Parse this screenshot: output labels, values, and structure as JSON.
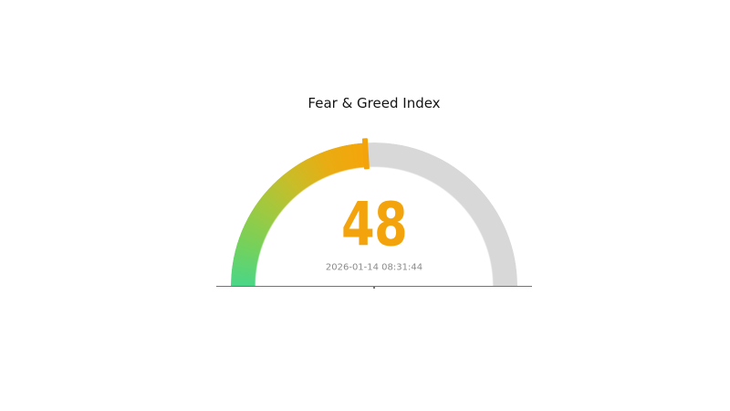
{
  "page": {
    "background_color": "#ffffff"
  },
  "chart_data": {
    "type": "gauge",
    "title": "Fear & Greed Index",
    "value": 48,
    "value_display": "48",
    "range": [
      0,
      100
    ],
    "timestamp": "2026-01-14 08:31:44",
    "gauge": {
      "shape": "semicircle",
      "start_angle_deg": 180,
      "end_angle_deg": 0,
      "fill_fraction": 0.48,
      "fill_gradient": [
        "#4ad687",
        "#74d15c",
        "#9fc940",
        "#c9bd28",
        "#e9ac12",
        "#f5a50a"
      ],
      "track_color": "#d8d8d8",
      "marker_color": "#f3a40c",
      "value_color": "#f3a40c",
      "baseline_color": "#747474"
    },
    "title_color": "#141414",
    "timestamp_color": "#8b8b8b",
    "legend": false,
    "grid": false,
    "axis_tick_labels": []
  }
}
